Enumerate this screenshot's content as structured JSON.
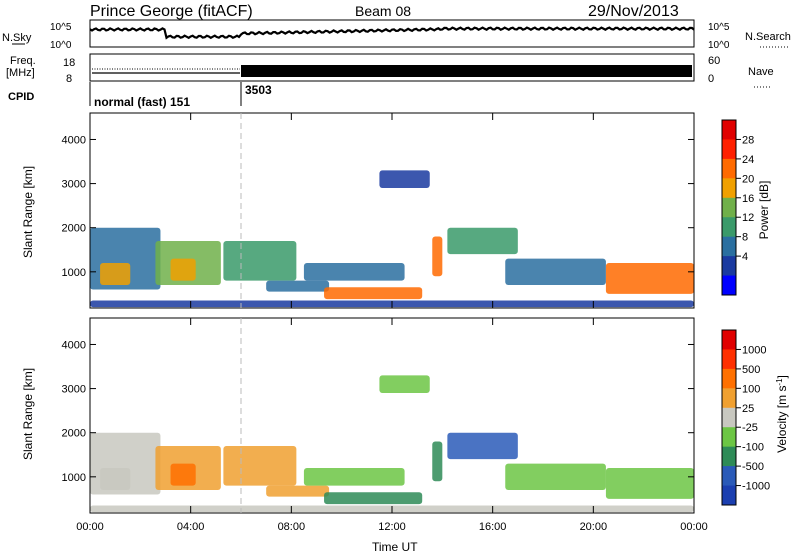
{
  "header": {
    "station": "Prince George (fitACF)",
    "beam": "Beam 08",
    "date": "29/Nov/2013"
  },
  "noise_panel": {
    "left_label": "N.Sky",
    "right_label": "N.Search",
    "left_ticks": [
      "10^5",
      "10^0"
    ],
    "right_ticks": [
      "10^5",
      "10^0"
    ]
  },
  "freq_panel": {
    "left_label": "Freq. [MHz]",
    "left_label_line1": "Freq.",
    "left_label_line2": "[MHz]",
    "right_label": "Nave",
    "left_ticks": [
      "18",
      "8"
    ],
    "right_ticks": [
      "60",
      "0"
    ]
  },
  "cpid": {
    "label": "CPID",
    "segments": [
      {
        "start_hour": 0,
        "text": "normal (fast) 151"
      },
      {
        "start_hour": 6,
        "text": "3503"
      }
    ]
  },
  "time_axis": {
    "xlabel": "Time UT",
    "ticks": [
      "00:00",
      "04:00",
      "08:00",
      "12:00",
      "16:00",
      "20:00",
      "00:00"
    ],
    "start_hour": 0,
    "end_hour": 24
  },
  "range_axis": {
    "ylabel": "Slant Range [km]",
    "ticks": [
      1000,
      2000,
      3000,
      4000
    ],
    "ylim": [
      180,
      4600
    ]
  },
  "power_scale": {
    "label": "Power [dB]",
    "ticks": [
      "28",
      "24",
      "20",
      "16",
      "12",
      "8",
      "4"
    ],
    "colors": [
      "#0000ff",
      "#1a3aa0",
      "#2a6fa0",
      "#3a9a6a",
      "#70b04a",
      "#f0a000",
      "#ff6a00",
      "#ff2000",
      "#e00000"
    ]
  },
  "velocity_scale": {
    "label": "Velocity [m s^-1]",
    "label_prefix": "Velocity [m s",
    "label_exp": "-1",
    "label_suffix": "]",
    "ticks": [
      "1000",
      "500",
      "100",
      "25",
      "-25",
      "-100",
      "-500",
      "-1000"
    ],
    "colors": [
      "#1b3fb0",
      "#2a5ab8",
      "#2e8b57",
      "#6cc644",
      "#c8c8c0",
      "#f0a030",
      "#ff7000",
      "#ff3000",
      "#e00000"
    ]
  },
  "chart_data": {
    "type": "heatmap",
    "x_units": "hours UT",
    "y_units": "km",
    "panels": [
      "power",
      "velocity"
    ],
    "echo_regions": [
      {
        "t0": 0.0,
        "t1": 2.8,
        "r0": 600,
        "r1": 2000,
        "power": 12,
        "velocity": -25
      },
      {
        "t0": 0.4,
        "t1": 1.6,
        "r0": 700,
        "r1": 1200,
        "power": 24,
        "velocity": -25
      },
      {
        "t0": 2.6,
        "t1": 5.2,
        "r0": 700,
        "r1": 1700,
        "power": 20,
        "velocity": -100
      },
      {
        "t0": 3.2,
        "t1": 4.2,
        "r0": 800,
        "r1": 1300,
        "power": 24,
        "velocity": -500
      },
      {
        "t0": 5.3,
        "t1": 8.2,
        "r0": 800,
        "r1": 1700,
        "power": 16,
        "velocity": -100
      },
      {
        "t0": 7.0,
        "t1": 9.5,
        "r0": 550,
        "r1": 800,
        "power": 12,
        "velocity": -100
      },
      {
        "t0": 8.5,
        "t1": 12.5,
        "r0": 800,
        "r1": 1200,
        "power": 12,
        "velocity": 25
      },
      {
        "t0": 9.3,
        "t1": 13.2,
        "r0": 380,
        "r1": 650,
        "power": 26,
        "velocity": 100
      },
      {
        "t0": 11.5,
        "t1": 13.5,
        "r0": 2900,
        "r1": 3300,
        "power": 8,
        "velocity": 25
      },
      {
        "t0": 13.6,
        "t1": 14.0,
        "r0": 900,
        "r1": 1800,
        "power": 26,
        "velocity": 100
      },
      {
        "t0": 14.2,
        "t1": 17.0,
        "r0": 1400,
        "r1": 2000,
        "power": 16,
        "velocity": 500
      },
      {
        "t0": 16.5,
        "t1": 20.5,
        "r0": 700,
        "r1": 1300,
        "power": 12,
        "velocity": 25
      },
      {
        "t0": 20.5,
        "t1": 24.0,
        "r0": 500,
        "r1": 1200,
        "power": 28,
        "velocity": 25
      },
      {
        "t0": 0.0,
        "t1": 24.0,
        "r0": 200,
        "r1": 350,
        "power": 8,
        "velocity": -25
      }
    ],
    "frequency_mhz": {
      "before_6h": 10.5,
      "after_6h": 10.5
    },
    "nave": {
      "before_6h": 20,
      "after_6h": 25
    }
  }
}
